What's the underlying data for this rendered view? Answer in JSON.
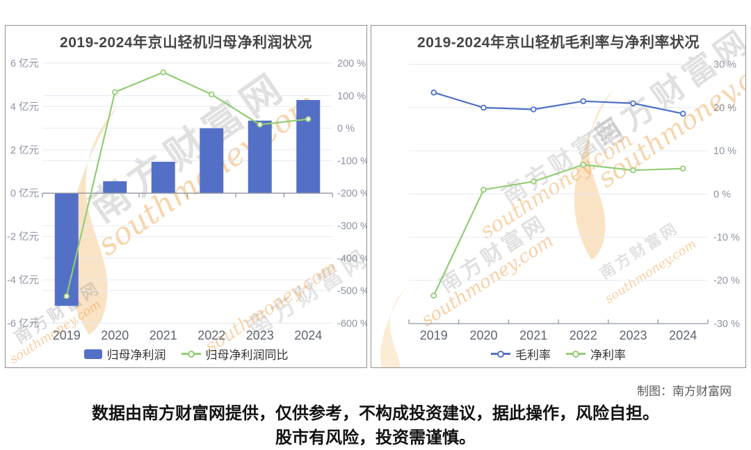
{
  "watermark": {
    "cn": "南方财富网",
    "en": "southmoney.com"
  },
  "footer": {
    "credit": "制图：南方财富网",
    "disclaimer1": "数据由南方财富网提供，仅供参考，不构成投资建议，据此操作，风险自担。",
    "disclaimer2": "股市有风险，投资需谨慎。"
  },
  "colors": {
    "bar_blue": "#5470c6",
    "line_blue": "#4f6fc6",
    "line_green": "#91cc75",
    "grid": "#e4e9f3",
    "axis": "#8f96a3",
    "tick_label": "#8d93a1",
    "year_label": "#5d6470",
    "title": "#454545",
    "legend_text": "#333333",
    "watermark_orange": "#ef9a3a",
    "watermark_gray": "#8a8a8a"
  },
  "chart_data": [
    {
      "type": "bar",
      "title": "2019-2024年京山轻机归母净利润状况",
      "categories": [
        "2019",
        "2020",
        "2021",
        "2022",
        "2023",
        "2024"
      ],
      "series": [
        {
          "name": "归母净利润",
          "type": "bar",
          "unit": "亿元",
          "axis": "left",
          "values": [
            -5.2,
            0.55,
            1.45,
            3.0,
            3.35,
            4.3
          ]
        },
        {
          "name": "归母净利润同比",
          "type": "line",
          "unit": "%",
          "axis": "right",
          "values": [
            -517,
            111,
            172,
            104,
            11,
            28
          ]
        }
      ],
      "left_axis": {
        "ticks": [
          "6 亿元",
          "4 亿元",
          "2 亿元",
          "0 亿元",
          "-2 亿元",
          "-4 亿元",
          "-6 亿元"
        ],
        "min": -6,
        "max": 6
      },
      "right_axis": {
        "ticks": [
          "200 %",
          "100 %",
          "0 %",
          "-100 %",
          "-200 %",
          "-300 %",
          "-400 %",
          "-500 %",
          "-600 %"
        ],
        "min": -600,
        "max": 200
      },
      "grid": true,
      "legend_position": "bottom"
    },
    {
      "type": "line",
      "title": "2019-2024年京山轻机毛利率与净利率状况",
      "categories": [
        "2019",
        "2020",
        "2021",
        "2022",
        "2023",
        "2024"
      ],
      "series": [
        {
          "name": "毛利率",
          "type": "line",
          "unit": "%",
          "values": [
            23.5,
            20.0,
            19.6,
            21.5,
            21.0,
            18.6
          ]
        },
        {
          "name": "净利率",
          "type": "line",
          "unit": "%",
          "values": [
            -23.5,
            1.0,
            2.9,
            6.8,
            5.5,
            5.9
          ]
        }
      ],
      "right_axis": {
        "ticks": [
          "30 %",
          "20 %",
          "10 %",
          "0 %",
          "-10 %",
          "-20 %",
          "-30 %"
        ],
        "min": -30,
        "max": 30
      },
      "grid": true,
      "legend_position": "bottom"
    }
  ]
}
